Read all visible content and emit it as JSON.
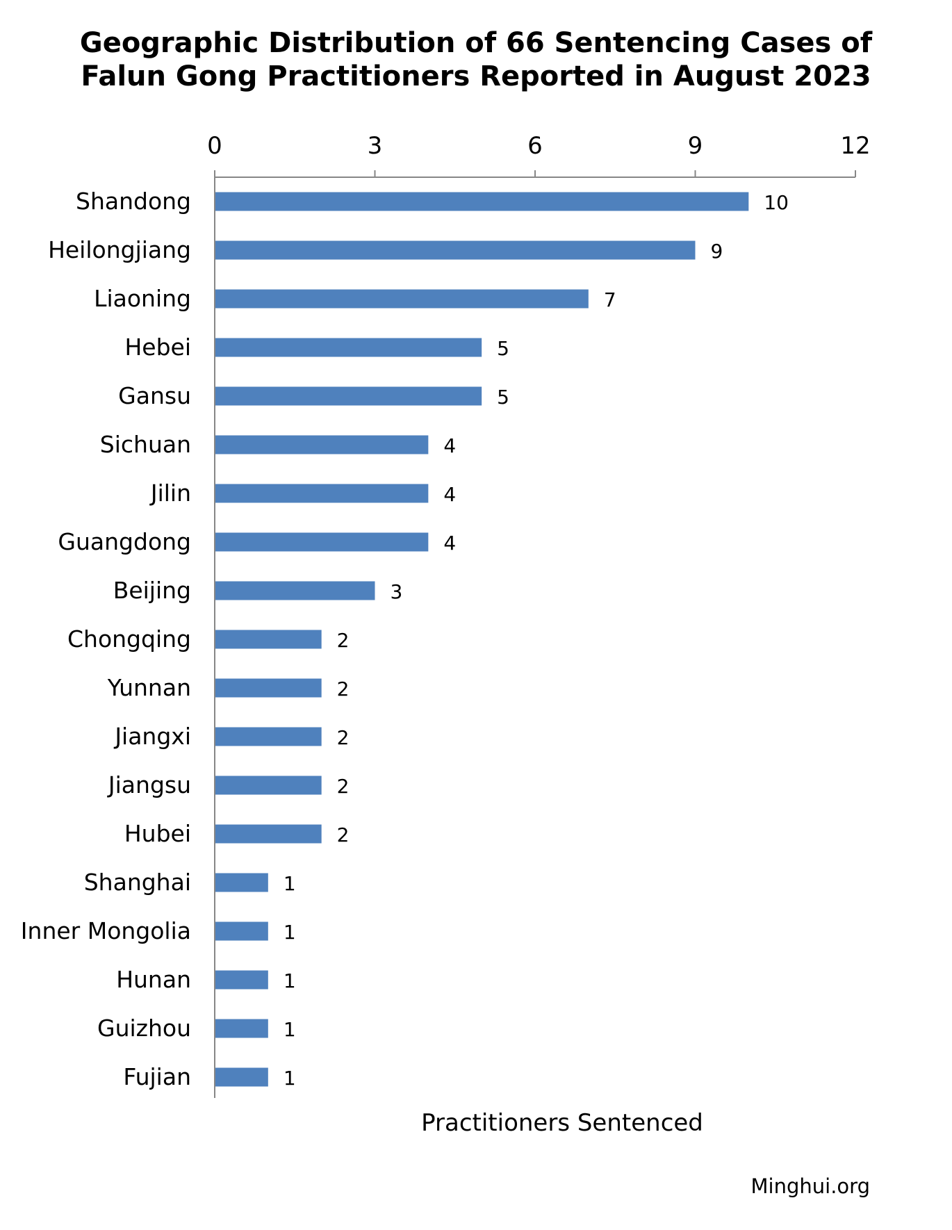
{
  "chart_data": {
    "type": "bar",
    "orientation": "horizontal",
    "title": [
      "Geographic Distribution of 66 Sentencing Cases of",
      "Falun Gong Practitioners Reported in August 2023"
    ],
    "xlabel": "Practitioners Sentenced",
    "ylabel": "",
    "xlim": [
      0,
      12
    ],
    "x_ticks": [
      0,
      3,
      6,
      9,
      12
    ],
    "x_axis_position": "top",
    "grid": false,
    "legend": "none",
    "bar_color": "#4F81BD",
    "data_labels": true,
    "categories": [
      "Shandong",
      "Heilongjiang",
      "Liaoning",
      "Hebei",
      "Gansu",
      "Sichuan",
      "Jilin",
      "Guangdong",
      "Beijing",
      "Chongqing",
      "Yunnan",
      "Jiangxi",
      "Jiangsu",
      "Hubei",
      "Shanghai",
      "Inner Mongolia",
      "Hunan",
      "Guizhou",
      "Fujian"
    ],
    "values": [
      10,
      9,
      7,
      5,
      5,
      4,
      4,
      4,
      3,
      2,
      2,
      2,
      2,
      2,
      1,
      1,
      1,
      1,
      1
    ]
  },
  "footer": {
    "source": "Minghui.org"
  }
}
